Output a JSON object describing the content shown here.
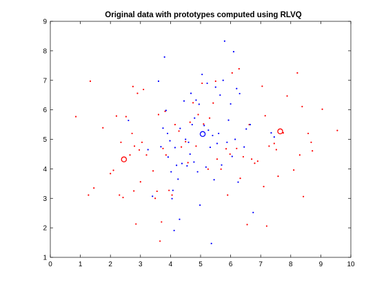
{
  "chart_data": {
    "type": "scatter",
    "title": "Original data with prototypes computed using RLVQ",
    "xlabel": "",
    "ylabel": "",
    "xlim": [
      0,
      10
    ],
    "ylim": [
      1,
      9
    ],
    "x_ticks": [
      "0",
      "1",
      "2",
      "3",
      "4",
      "5",
      "6",
      "7",
      "8",
      "9",
      "10"
    ],
    "y_ticks": [
      "1",
      "2",
      "3",
      "4",
      "5",
      "6",
      "7",
      "8",
      "9"
    ],
    "grid": false,
    "legend": "none",
    "series": [
      {
        "color": "#ff0000",
        "marker": "dot",
        "points": [
          [
            0.85,
            5.77
          ],
          [
            1.27,
            3.11
          ],
          [
            1.33,
            6.97
          ],
          [
            1.45,
            3.35
          ],
          [
            1.75,
            5.39
          ],
          [
            2.0,
            3.84
          ],
          [
            2.1,
            3.95
          ],
          [
            2.2,
            5.79
          ],
          [
            2.3,
            3.11
          ],
          [
            2.35,
            4.9
          ],
          [
            2.42,
            3.03
          ],
          [
            2.52,
            5.77
          ],
          [
            2.65,
            4.47
          ],
          [
            2.72,
            5.2
          ],
          [
            2.75,
            6.79
          ],
          [
            2.78,
            3.25
          ],
          [
            2.8,
            4.77
          ],
          [
            2.85,
            2.13
          ],
          [
            2.9,
            6.56
          ],
          [
            2.96,
            4.64
          ],
          [
            3.0,
            3.56
          ],
          [
            3.05,
            4.9
          ],
          [
            3.1,
            6.69
          ],
          [
            3.2,
            4.47
          ],
          [
            3.42,
            3.93
          ],
          [
            3.49,
            3.0
          ],
          [
            3.55,
            3.24
          ],
          [
            3.6,
            5.84
          ],
          [
            3.65,
            1.55
          ],
          [
            3.7,
            2.2
          ],
          [
            3.75,
            4.69
          ],
          [
            3.82,
            5.95
          ],
          [
            3.85,
            4.47
          ],
          [
            3.95,
            3.27
          ],
          [
            4.05,
            3.11
          ],
          [
            4.15,
            5.5
          ],
          [
            4.28,
            5.28
          ],
          [
            4.36,
            4.74
          ],
          [
            4.5,
            4.92
          ],
          [
            4.58,
            4.21
          ],
          [
            4.65,
            5.58
          ],
          [
            4.75,
            6.24
          ],
          [
            4.85,
            4.77
          ],
          [
            4.92,
            5.84
          ],
          [
            5.05,
            6.9
          ],
          [
            5.1,
            5.52
          ],
          [
            5.25,
            3.99
          ],
          [
            5.3,
            5.72
          ],
          [
            5.42,
            6.23
          ],
          [
            5.5,
            6.97
          ],
          [
            5.55,
            4.33
          ],
          [
            5.68,
            3.99
          ],
          [
            5.85,
            4.68
          ],
          [
            5.9,
            3.11
          ],
          [
            5.98,
            4.5
          ],
          [
            6.05,
            7.25
          ],
          [
            6.2,
            4.69
          ],
          [
            6.28,
            7.39
          ],
          [
            6.32,
            3.68
          ],
          [
            6.42,
            4.41
          ],
          [
            6.55,
            2.11
          ],
          [
            6.62,
            5.5
          ],
          [
            6.7,
            4.33
          ],
          [
            6.8,
            4.19
          ],
          [
            6.9,
            4.26
          ],
          [
            7.05,
            6.8
          ],
          [
            7.1,
            3.4
          ],
          [
            7.15,
            5.8
          ],
          [
            7.2,
            2.06
          ],
          [
            7.28,
            4.77
          ],
          [
            7.45,
            4.86
          ],
          [
            7.52,
            4.65
          ],
          [
            7.58,
            3.75
          ],
          [
            7.75,
            5.22
          ],
          [
            7.88,
            6.47
          ],
          [
            8.1,
            3.96
          ],
          [
            8.22,
            7.25
          ],
          [
            8.3,
            4.47
          ],
          [
            8.38,
            6.11
          ],
          [
            8.42,
            3.06
          ],
          [
            8.58,
            5.2
          ],
          [
            8.68,
            4.9
          ],
          [
            8.72,
            4.61
          ],
          [
            9.05,
            6.02
          ],
          [
            9.55,
            5.3
          ]
        ]
      },
      {
        "color": "#0000ff",
        "marker": "dot",
        "points": [
          [
            2.6,
            5.64
          ],
          [
            3.25,
            4.65
          ],
          [
            3.4,
            3.07
          ],
          [
            3.6,
            6.97
          ],
          [
            3.68,
            4.75
          ],
          [
            3.75,
            5.38
          ],
          [
            3.8,
            7.79
          ],
          [
            3.85,
            5.98
          ],
          [
            3.9,
            5.2
          ],
          [
            3.92,
            4.4
          ],
          [
            3.98,
            4.95
          ],
          [
            4.02,
            3.9
          ],
          [
            4.05,
            2.99
          ],
          [
            4.08,
            3.27
          ],
          [
            4.12,
            1.91
          ],
          [
            4.15,
            4.72
          ],
          [
            4.2,
            4.12
          ],
          [
            4.25,
            3.65
          ],
          [
            4.3,
            2.29
          ],
          [
            4.32,
            5.37
          ],
          [
            4.38,
            4.18
          ],
          [
            4.45,
            6.3
          ],
          [
            4.5,
            5.0
          ],
          [
            4.55,
            4.1
          ],
          [
            4.6,
            4.9
          ],
          [
            4.65,
            4.5
          ],
          [
            4.68,
            6.56
          ],
          [
            4.72,
            5.5
          ],
          [
            4.78,
            4.23
          ],
          [
            4.8,
            5.72
          ],
          [
            4.85,
            6.33
          ],
          [
            4.9,
            3.9
          ],
          [
            4.95,
            6.19
          ],
          [
            4.98,
            2.77
          ],
          [
            5.05,
            7.2
          ],
          [
            5.12,
            5.47
          ],
          [
            5.18,
            4.06
          ],
          [
            5.22,
            6.9
          ],
          [
            5.26,
            5.31
          ],
          [
            5.32,
            4.73
          ],
          [
            5.36,
            1.47
          ],
          [
            5.4,
            5.13
          ],
          [
            5.45,
            3.63
          ],
          [
            5.5,
            6.77
          ],
          [
            5.55,
            4.86
          ],
          [
            5.6,
            5.2
          ],
          [
            5.65,
            6.5
          ],
          [
            5.7,
            4.13
          ],
          [
            5.75,
            7.0
          ],
          [
            5.8,
            8.33
          ],
          [
            5.88,
            4.9
          ],
          [
            5.93,
            5.65
          ],
          [
            6.0,
            6.2
          ],
          [
            6.05,
            4.42
          ],
          [
            6.1,
            7.97
          ],
          [
            6.15,
            5.0
          ],
          [
            6.2,
            6.72
          ],
          [
            6.25,
            3.55
          ],
          [
            6.3,
            6.55
          ],
          [
            6.45,
            4.74
          ],
          [
            6.52,
            5.35
          ],
          [
            6.65,
            5.5
          ],
          [
            6.75,
            2.52
          ],
          [
            7.35,
            5.22
          ],
          [
            7.45,
            5.08
          ]
        ]
      }
    ],
    "prototypes": [
      {
        "color": "#ff0000",
        "x": 2.45,
        "y": 4.32
      },
      {
        "color": "#0000ff",
        "x": 5.07,
        "y": 5.18
      },
      {
        "color": "#ff0000",
        "x": 7.65,
        "y": 5.27
      }
    ]
  }
}
